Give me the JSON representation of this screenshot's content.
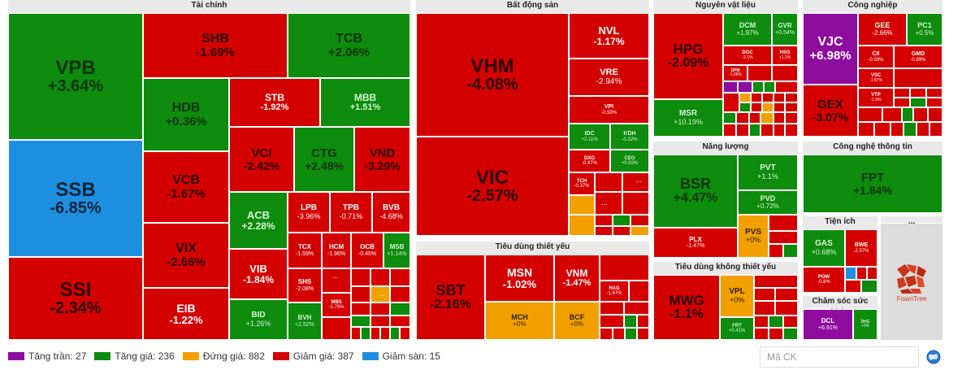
{
  "colors": {
    "ceiling": "#8e0c9e",
    "up": "#0d8c0d",
    "flat": "#f2a000",
    "down": "#d40000",
    "floor": "#1e8fe0"
  },
  "groups": {
    "finance": "Tài chính",
    "realestate": "Bất động sản",
    "materials": "Nguyên vật liệu",
    "industrial": "Công nghiệp",
    "energy": "Năng lượng",
    "it": "Công nghệ thông tin",
    "staples": "Tiêu dùng thiết yếu",
    "discretionary": "Tiêu dùng không thiết yếu",
    "utilities": "Tiện ích",
    "health": "Chăm sóc sức khỏe",
    "other": "..."
  },
  "tiles": {
    "VPB": {
      "s": "VPB",
      "p": "+3.64%"
    },
    "SSB": {
      "s": "SSB",
      "p": "-6.85%"
    },
    "SSI": {
      "s": "SSI",
      "p": "-2.34%"
    },
    "SHB": {
      "s": "SHB",
      "p": "-1.69%"
    },
    "TCB": {
      "s": "TCB",
      "p": "+2.06%"
    },
    "HDB": {
      "s": "HDB",
      "p": "+0.36%"
    },
    "STB": {
      "s": "STB",
      "p": "-1.92%"
    },
    "MBB": {
      "s": "MBB",
      "p": "+1.51%"
    },
    "VCB": {
      "s": "VCB",
      "p": "-1.67%"
    },
    "VIX": {
      "s": "VIX",
      "p": "-2.66%"
    },
    "EIB": {
      "s": "EIB",
      "p": "-1.22%"
    },
    "VCI": {
      "s": "VCI",
      "p": "-2.42%"
    },
    "CTG": {
      "s": "CTG",
      "p": "+2.48%"
    },
    "VND": {
      "s": "VND",
      "p": "-3.29%"
    },
    "ACB": {
      "s": "ACB",
      "p": "+2.28%"
    },
    "VIB": {
      "s": "VIB",
      "p": "-1.84%"
    },
    "BID": {
      "s": "BID",
      "p": "+1.26%"
    },
    "LPB": {
      "s": "LPB",
      "p": "-3.96%"
    },
    "TPB": {
      "s": "TPB",
      "p": "-0.71%"
    },
    "BVB": {
      "s": "BVB",
      "p": "-4.68%"
    },
    "TCX": {
      "s": "TCX",
      "p": "-1.59%"
    },
    "HCM": {
      "s": "HCM",
      "p": "-1.96%"
    },
    "OCB": {
      "s": "OCB",
      "p": "-0.45%"
    },
    "MSB": {
      "s": "MSB",
      "p": "+1.14%"
    },
    "SHS": {
      "s": "SHS",
      "p": "-2.08%"
    },
    "BVH": {
      "s": "BVH",
      "p": "+2.52%"
    },
    "MBS": {
      "s": "MBS",
      "p": "-1.79%"
    },
    "VHM": {
      "s": "VHM",
      "p": "-4.08%"
    },
    "VIC": {
      "s": "VIC",
      "p": "-2.57%"
    },
    "NVL": {
      "s": "NVL",
      "p": "-1.17%"
    },
    "VRE": {
      "s": "VRE",
      "p": "-2.94%"
    },
    "VPI": {
      "s": "VPI",
      "p": "-0.59%"
    },
    "IDC": {
      "s": "IDC",
      "p": "+2.11%"
    },
    "KDH": {
      "s": "KDH",
      "p": "-0.32%"
    },
    "DXG": {
      "s": "DXG",
      "p": "-0.47%"
    },
    "CEO": {
      "s": "CEO",
      "p": "+0.93%"
    },
    "TCH": {
      "s": "TCH",
      "p": "-0.37%"
    },
    "HPG": {
      "s": "HPG",
      "p": "-2.09%"
    },
    "MSR": {
      "s": "MSR",
      "p": "+10.19%"
    },
    "DCM": {
      "s": "DCM",
      "p": "+1.97%"
    },
    "GVR": {
      "s": "GVR",
      "p": "+0.54%"
    },
    "DGC": {
      "s": "DGC",
      "p": "-2.1%"
    },
    "HSG": {
      "s": "HSG",
      "p": "+1.2%"
    },
    "DPM": {
      "s": "DPM",
      "p": "-1.06%"
    },
    "VJC": {
      "s": "VJC",
      "p": "+6.98%"
    },
    "GEX": {
      "s": "GEX",
      "p": "-3.07%"
    },
    "GEE": {
      "s": "GEE",
      "p": "-2.66%"
    },
    "PC1": {
      "s": "PC1",
      "p": "+0.5%"
    },
    "CII": {
      "s": "CII",
      "p": "-0.59%"
    },
    "GMD": {
      "s": "GMD",
      "p": "-0.89%"
    },
    "VSC": {
      "s": "VSC",
      "p": "-1.87%"
    },
    "VTP": {
      "s": "VTP",
      "p": "-1.9%"
    },
    "BSR": {
      "s": "BSR",
      "p": "+4.47%"
    },
    "PVT": {
      "s": "PVT",
      "p": "+1.1%"
    },
    "PVD": {
      "s": "PVD",
      "p": "+0.72%"
    },
    "PLX": {
      "s": "PLX",
      "p": "-1.47%"
    },
    "PVS": {
      "s": "PVS",
      "p": "+0%"
    },
    "FPT": {
      "s": "FPT",
      "p": "+1.84%"
    },
    "SBT": {
      "s": "SBT",
      "p": "-2.16%"
    },
    "MSN": {
      "s": "MSN",
      "p": "-1.02%"
    },
    "VNM": {
      "s": "VNM",
      "p": "-1.47%"
    },
    "MCH": {
      "s": "MCH",
      "p": "+0%"
    },
    "BCF": {
      "s": "BCF",
      "p": "+0%"
    },
    "HAG": {
      "s": "HAG",
      "p": "-1.67%"
    },
    "MWG": {
      "s": "MWG",
      "p": "-1.1%"
    },
    "VPL": {
      "s": "VPL",
      "p": "+0%"
    },
    "FRT": {
      "s": "FRT",
      "p": "+0.41%"
    },
    "GAS": {
      "s": "GAS",
      "p": "+0.68%"
    },
    "BWE": {
      "s": "BWE",
      "p": "-2.57%"
    },
    "POW": {
      "s": "POW",
      "p": "-0.8%"
    },
    "DCL": {
      "s": "DCL",
      "p": "+6.91%"
    },
    "DHG": {
      "s": "DHG",
      "p": "+0%"
    }
  },
  "brand": "FoamTree",
  "legend": [
    {
      "label": "Tăng trần: 27",
      "color": "#8e0c9e"
    },
    {
      "label": "Tăng giá: 236",
      "color": "#0d8c0d"
    },
    {
      "label": "Đứng giá: 882",
      "color": "#f2a000"
    },
    {
      "label": "Giảm giá: 387",
      "color": "#d40000"
    },
    {
      "label": "Giảm sàn: 15",
      "color": "#1e8fe0"
    }
  ],
  "search": {
    "placeholder": "Mã CK"
  },
  "icons": {
    "globe": "globe-icon",
    "foamtree": "foamtree-logo"
  }
}
